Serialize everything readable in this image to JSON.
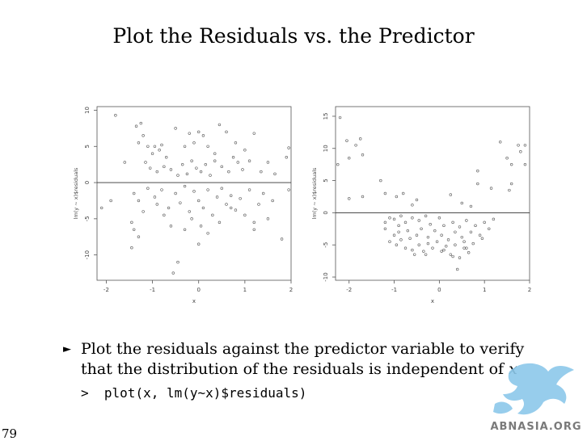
{
  "slide": {
    "title": "Plot the Residuals vs. the Predictor",
    "bullet_text": "Plot the residuals against the predictor variable to verify that the distribution of the residuals is independent of",
    "bullet_var": "x",
    "code_prompt": ">",
    "code": "plot(x, lm(y~x)$residuals)",
    "page_number": "79",
    "logo_text": "ABNASIA.ORG"
  },
  "chart_data": [
    {
      "type": "scatter",
      "xlabel": "x",
      "ylabel": "lm(y ~ x)$residuals",
      "xlim": [
        -2.2,
        2.0
      ],
      "ylim": [
        -13.5,
        10.5
      ],
      "xticks": [
        -2,
        -1,
        0,
        1,
        2
      ],
      "yticks": [
        -10,
        -5,
        0,
        5,
        10
      ],
      "hline": 0,
      "points": [
        [
          -1.8,
          9.3
        ],
        [
          -1.6,
          2.8
        ],
        [
          -1.35,
          7.8
        ],
        [
          -1.25,
          8.2
        ],
        [
          -1.3,
          5.5
        ],
        [
          -1.2,
          6.5
        ],
        [
          -1.1,
          5.0
        ],
        [
          -1.0,
          4.0
        ],
        [
          -0.95,
          5.0
        ],
        [
          -0.85,
          4.5
        ],
        [
          -0.8,
          5.2
        ],
        [
          -0.7,
          3.5
        ],
        [
          -0.5,
          7.5
        ],
        [
          -0.3,
          5.0
        ],
        [
          -0.2,
          6.8
        ],
        [
          -0.1,
          5.5
        ],
        [
          0.0,
          7.0
        ],
        [
          0.1,
          6.5
        ],
        [
          0.2,
          5.0
        ],
        [
          0.35,
          4.0
        ],
        [
          0.45,
          8.0
        ],
        [
          0.6,
          7.0
        ],
        [
          0.8,
          5.5
        ],
        [
          1.0,
          4.5
        ],
        [
          1.2,
          6.8
        ],
        [
          1.35,
          1.5
        ],
        [
          1.5,
          2.8
        ],
        [
          1.65,
          1.2
        ],
        [
          1.9,
          3.5
        ],
        [
          1.95,
          4.8
        ],
        [
          -1.15,
          2.8
        ],
        [
          -1.05,
          2.0
        ],
        [
          -0.9,
          1.5
        ],
        [
          -0.75,
          2.2
        ],
        [
          -0.6,
          1.8
        ],
        [
          -0.45,
          1.0
        ],
        [
          -0.35,
          2.5
        ],
        [
          -0.25,
          1.2
        ],
        [
          -0.15,
          3.0
        ],
        [
          -0.05,
          2.0
        ],
        [
          0.05,
          1.5
        ],
        [
          0.15,
          2.5
        ],
        [
          0.25,
          1.0
        ],
        [
          0.35,
          3.0
        ],
        [
          0.5,
          2.2
        ],
        [
          0.65,
          1.5
        ],
        [
          0.75,
          3.5
        ],
        [
          0.85,
          2.8
        ],
        [
          0.95,
          1.8
        ],
        [
          1.1,
          3.0
        ],
        [
          -1.4,
          -1.5
        ],
        [
          -1.3,
          -2.5
        ],
        [
          -1.1,
          -0.8
        ],
        [
          -0.95,
          -2.0
        ],
        [
          -0.8,
          -1.0
        ],
        [
          -0.65,
          -3.5
        ],
        [
          -0.5,
          -1.5
        ],
        [
          -0.4,
          -2.8
        ],
        [
          -0.3,
          -0.5
        ],
        [
          -0.2,
          -4.0
        ],
        [
          -0.1,
          -1.2
        ],
        [
          0.0,
          -2.5
        ],
        [
          0.1,
          -3.5
        ],
        [
          0.2,
          -1.0
        ],
        [
          0.3,
          -4.5
        ],
        [
          0.4,
          -2.0
        ],
        [
          0.5,
          -0.8
        ],
        [
          0.6,
          -3.0
        ],
        [
          0.7,
          -1.8
        ],
        [
          0.8,
          -3.8
        ],
        [
          0.9,
          -2.2
        ],
        [
          1.0,
          -4.5
        ],
        [
          1.1,
          -1.0
        ],
        [
          1.2,
          -5.5
        ],
        [
          1.3,
          -3.0
        ],
        [
          1.4,
          -1.5
        ],
        [
          1.5,
          -5.0
        ],
        [
          1.6,
          -2.5
        ],
        [
          1.8,
          -7.8
        ],
        [
          1.95,
          -1.0
        ],
        [
          -2.1,
          -3.5
        ],
        [
          -1.9,
          -2.5
        ],
        [
          -1.45,
          -5.5
        ],
        [
          -1.4,
          -6.5
        ],
        [
          -1.3,
          -7.5
        ],
        [
          -1.2,
          -4.0
        ],
        [
          -0.9,
          -3.0
        ],
        [
          -0.75,
          -4.5
        ],
        [
          -0.6,
          -6.0
        ],
        [
          -0.55,
          -12.5
        ],
        [
          -0.45,
          -11.0
        ],
        [
          -0.3,
          -6.5
        ],
        [
          -0.15,
          -5.0
        ],
        [
          0.05,
          -6.0
        ],
        [
          0.2,
          -7.0
        ],
        [
          0.45,
          -5.5
        ],
        [
          0.7,
          -3.5
        ],
        [
          1.2,
          -6.5
        ],
        [
          -1.45,
          -9.0
        ],
        [
          0.0,
          -8.5
        ]
      ]
    },
    {
      "type": "scatter",
      "xlabel": "x",
      "ylabel": "lm(y ~ x)$residuals",
      "xlim": [
        -2.3,
        2.0
      ],
      "ylim": [
        -10.5,
        16.5
      ],
      "xticks": [
        -2,
        -1,
        0,
        1,
        2
      ],
      "yticks": [
        -10,
        -5,
        0,
        5,
        10,
        15
      ],
      "hline": 0,
      "points": [
        [
          -2.2,
          14.8
        ],
        [
          -2.25,
          7.5
        ],
        [
          -2.05,
          11.2
        ],
        [
          -2.0,
          8.5
        ],
        [
          -1.85,
          10.5
        ],
        [
          -1.75,
          11.5
        ],
        [
          -1.7,
          9.0
        ],
        [
          -2.0,
          2.2
        ],
        [
          -1.7,
          2.5
        ],
        [
          -1.3,
          5.0
        ],
        [
          -1.2,
          3.0
        ],
        [
          -0.95,
          2.5
        ],
        [
          -0.8,
          3.0
        ],
        [
          -0.6,
          1.2
        ],
        [
          -0.5,
          2.0
        ],
        [
          0.25,
          2.8
        ],
        [
          0.5,
          1.5
        ],
        [
          0.7,
          1.0
        ],
        [
          0.85,
          4.5
        ],
        [
          0.85,
          6.5
        ],
        [
          1.15,
          3.8
        ],
        [
          1.35,
          11.0
        ],
        [
          1.5,
          8.5
        ],
        [
          1.55,
          3.5
        ],
        [
          1.6,
          4.5
        ],
        [
          1.6,
          7.5
        ],
        [
          1.75,
          10.5
        ],
        [
          1.8,
          9.5
        ],
        [
          1.9,
          10.5
        ],
        [
          1.9,
          7.5
        ],
        [
          -1.2,
          -1.5
        ],
        [
          -1.1,
          -0.8
        ],
        [
          -1.0,
          -1.0
        ],
        [
          -0.9,
          -2.0
        ],
        [
          -0.85,
          -0.5
        ],
        [
          -0.75,
          -1.5
        ],
        [
          -0.7,
          -2.8
        ],
        [
          -0.6,
          -0.8
        ],
        [
          -0.5,
          -3.5
        ],
        [
          -0.45,
          -1.2
        ],
        [
          -0.4,
          -2.5
        ],
        [
          -0.3,
          -0.5
        ],
        [
          -0.25,
          -3.8
        ],
        [
          -0.2,
          -1.8
        ],
        [
          -0.1,
          -2.8
        ],
        [
          0.0,
          -0.8
        ],
        [
          0.05,
          -3.5
        ],
        [
          0.1,
          -2.0
        ],
        [
          0.2,
          -4.2
        ],
        [
          0.3,
          -1.5
        ],
        [
          0.35,
          -3.0
        ],
        [
          0.45,
          -2.2
        ],
        [
          0.55,
          -4.5
        ],
        [
          0.6,
          -1.2
        ],
        [
          0.7,
          -3.0
        ],
        [
          0.8,
          -2.0
        ],
        [
          0.9,
          -3.5
        ],
        [
          1.0,
          -1.5
        ],
        [
          1.1,
          -2.5
        ],
        [
          1.2,
          -1.0
        ],
        [
          -1.1,
          -4.5
        ],
        [
          -1.0,
          -3.5
        ],
        [
          -0.95,
          -5.0
        ],
        [
          -0.85,
          -4.2
        ],
        [
          -0.75,
          -5.5
        ],
        [
          -0.65,
          -4.0
        ],
        [
          -0.55,
          -6.5
        ],
        [
          -0.45,
          -5.0
        ],
        [
          -0.35,
          -6.0
        ],
        [
          -0.25,
          -4.8
        ],
        [
          -0.15,
          -5.5
        ],
        [
          -0.05,
          -4.5
        ],
        [
          0.05,
          -6.0
        ],
        [
          0.15,
          -5.2
        ],
        [
          0.25,
          -6.5
        ],
        [
          0.35,
          -5.0
        ],
        [
          0.45,
          -7.0
        ],
        [
          0.55,
          -5.5
        ],
        [
          0.65,
          -6.2
        ],
        [
          0.75,
          -4.8
        ],
        [
          0.1,
          -5.8
        ],
        [
          0.3,
          -6.8
        ],
        [
          0.4,
          -8.8
        ],
        [
          -0.3,
          -6.5
        ],
        [
          -0.6,
          -5.8
        ],
        [
          0.95,
          -4.0
        ],
        [
          -1.2,
          -2.5
        ],
        [
          -0.9,
          -3.0
        ],
        [
          0.5,
          -3.8
        ],
        [
          0.6,
          -5.5
        ]
      ]
    }
  ]
}
